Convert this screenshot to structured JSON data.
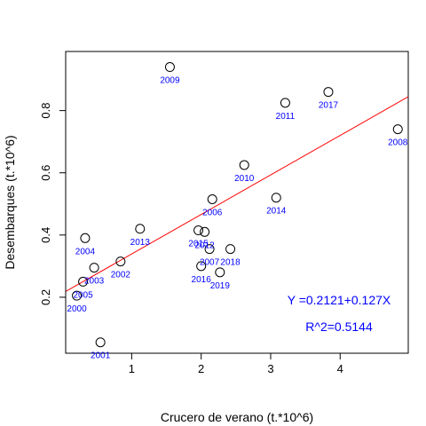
{
  "chart_data": {
    "type": "scatter",
    "xlabel": "Crucero de verano (t.*10^6)",
    "ylabel": "Desembarques (t.*10^6)",
    "xlim": [
      0.05,
      4.98
    ],
    "ylim": [
      0.02,
      0.99
    ],
    "x_ticks": [
      1,
      2,
      3,
      4
    ],
    "y_ticks": [
      0.2,
      0.4,
      0.6,
      0.8
    ],
    "x_tick_labels": [
      "1",
      "2",
      "3",
      "4"
    ],
    "y_tick_labels": [
      "0.2",
      "0.4",
      "0.6",
      "0.8"
    ],
    "grid": false,
    "points": [
      {
        "label": "2000",
        "x": 0.21,
        "y": 0.205
      },
      {
        "label": "2005",
        "x": 0.3,
        "y": 0.25
      },
      {
        "label": "2004",
        "x": 0.33,
        "y": 0.39
      },
      {
        "label": "2003",
        "x": 0.46,
        "y": 0.295
      },
      {
        "label": "2001",
        "x": 0.55,
        "y": 0.055
      },
      {
        "label": "2002",
        "x": 0.84,
        "y": 0.315
      },
      {
        "label": "2013",
        "x": 1.12,
        "y": 0.42
      },
      {
        "label": "2009",
        "x": 1.55,
        "y": 0.94
      },
      {
        "label": "2015",
        "x": 1.96,
        "y": 0.415
      },
      {
        "label": "2016",
        "x": 2.0,
        "y": 0.3
      },
      {
        "label": "2012",
        "x": 2.05,
        "y": 0.41
      },
      {
        "label": "2007",
        "x": 2.12,
        "y": 0.355
      },
      {
        "label": "2006",
        "x": 2.16,
        "y": 0.515
      },
      {
        "label": "2019",
        "x": 2.27,
        "y": 0.28
      },
      {
        "label": "2018",
        "x": 2.42,
        "y": 0.355
      },
      {
        "label": "2010",
        "x": 2.62,
        "y": 0.625
      },
      {
        "label": "2014",
        "x": 3.08,
        "y": 0.52
      },
      {
        "label": "2011",
        "x": 3.21,
        "y": 0.825
      },
      {
        "label": "2017",
        "x": 3.83,
        "y": 0.86
      },
      {
        "label": "2008",
        "x": 4.83,
        "y": 0.74
      }
    ],
    "regression": {
      "intercept": 0.2121,
      "slope": 0.127,
      "color": "#FF0000"
    },
    "annotations": {
      "equation": "Y =0.2121+0.127X",
      "r2": "R^2=0.5144",
      "color": "#0000FF"
    },
    "point_label_color": "#0000FF"
  }
}
